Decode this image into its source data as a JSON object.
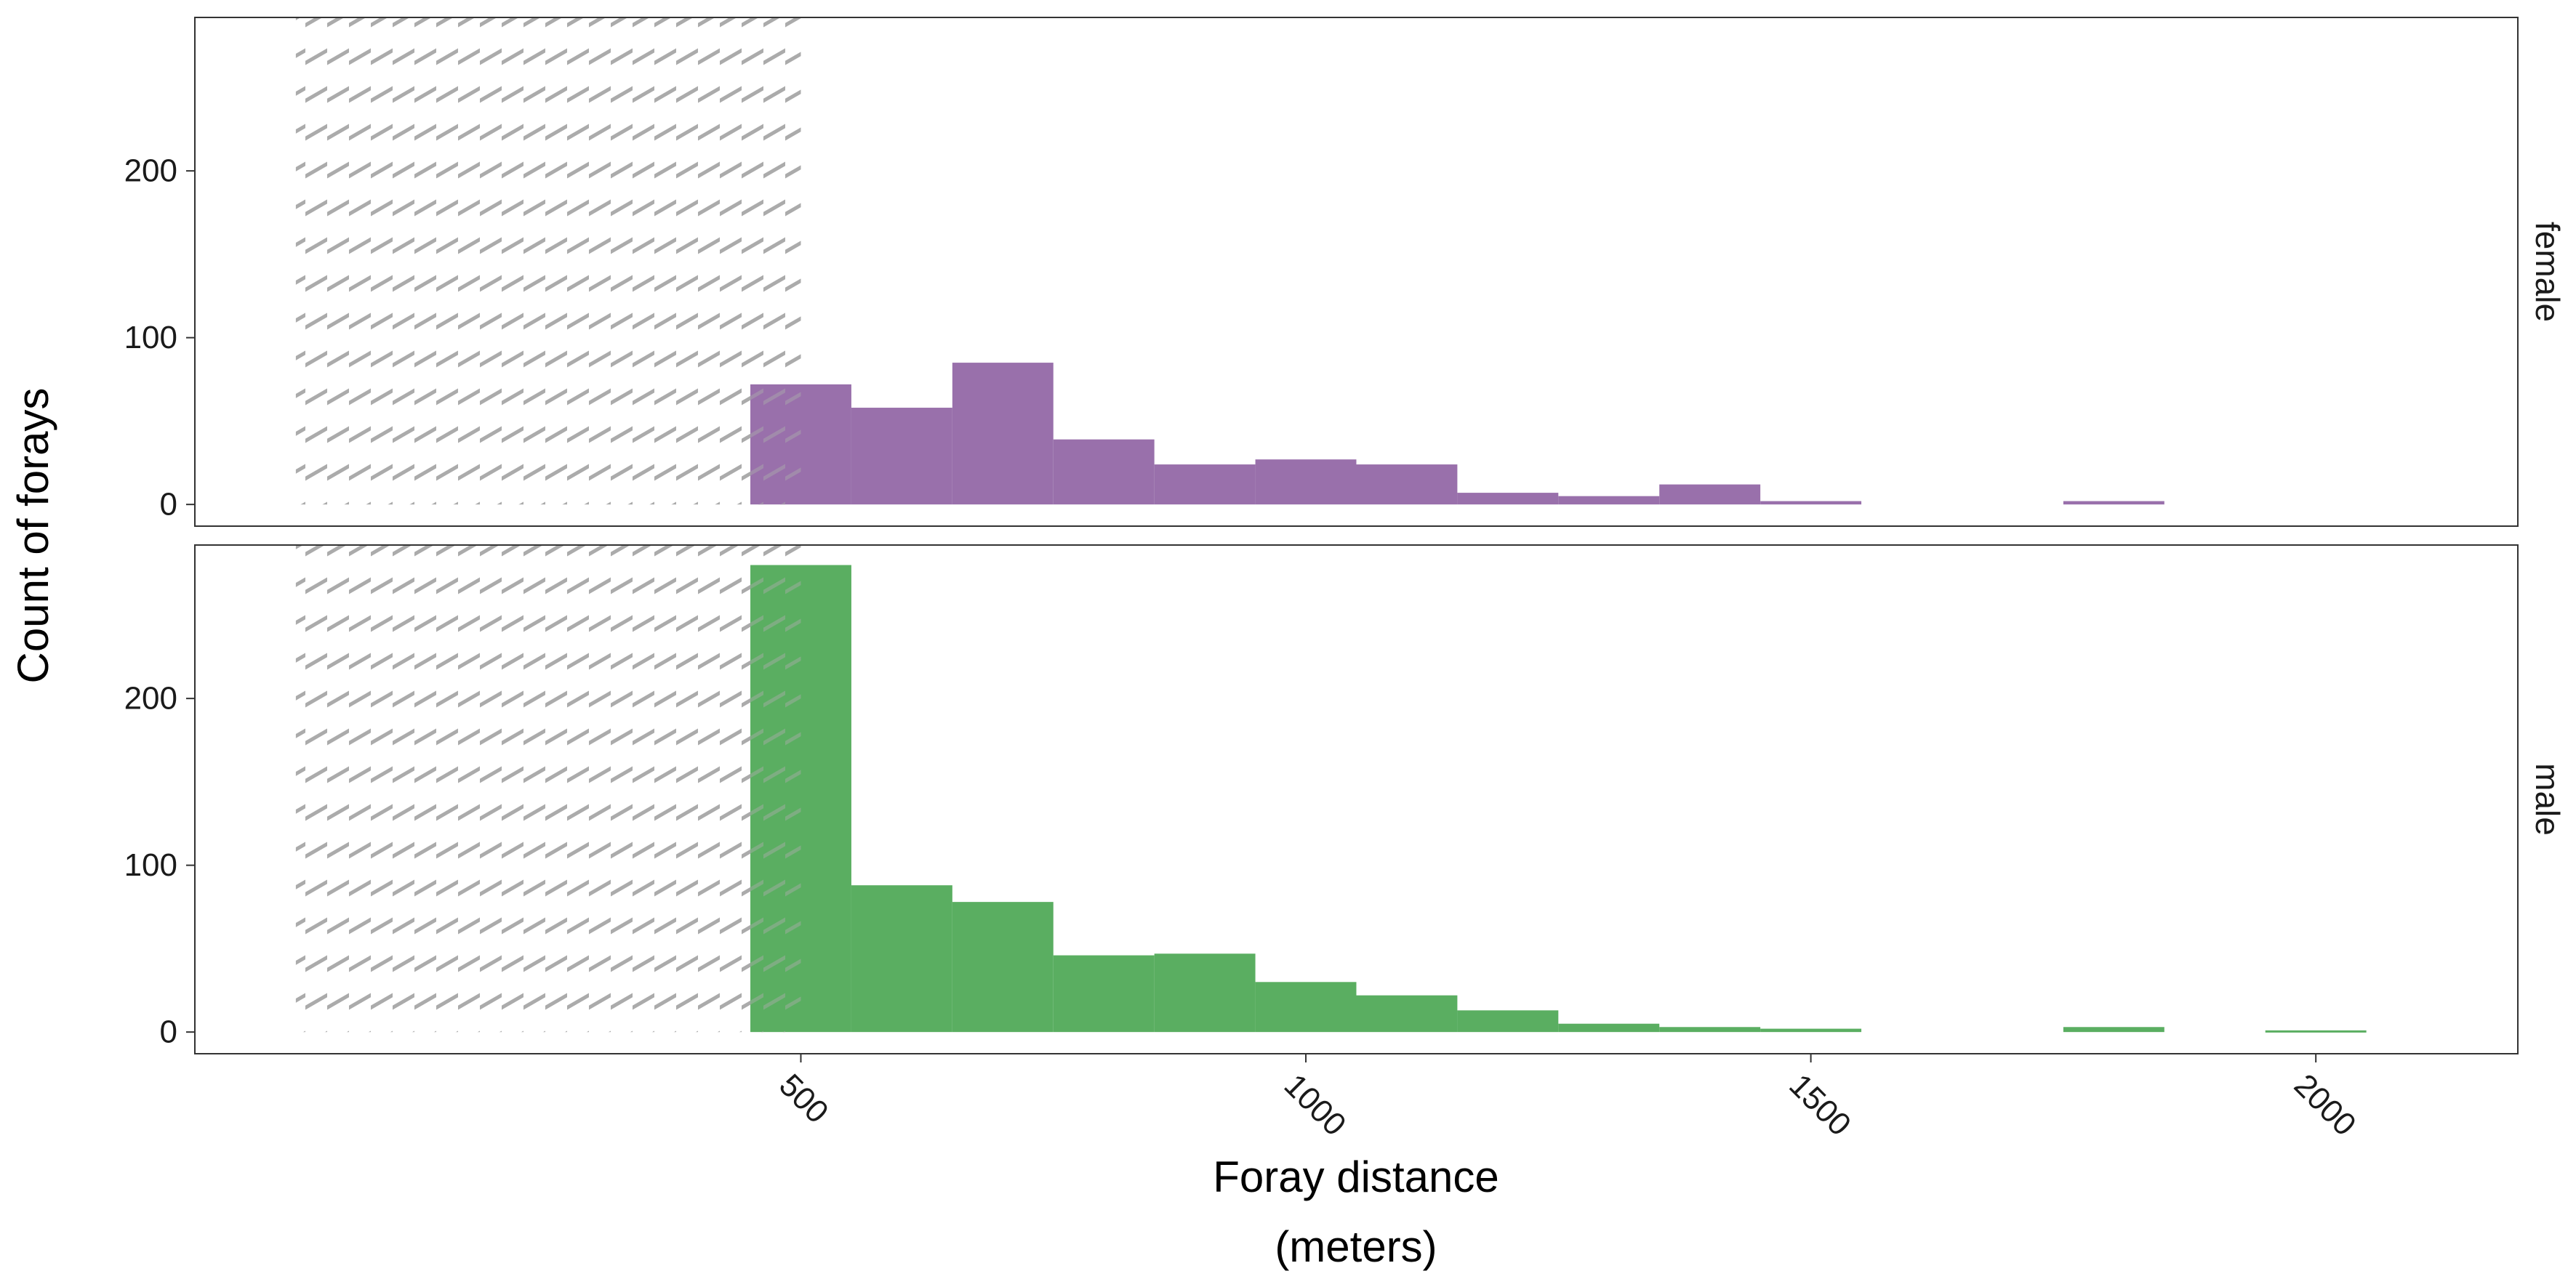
{
  "chart_data": {
    "type": "bar",
    "xlabel": "Foray distance",
    "xlabel_unit": "(meters)",
    "ylabel": "Count of forays",
    "x_ticks": [
      500,
      1000,
      1500,
      2000
    ],
    "y_ticks": [
      0,
      100,
      200
    ],
    "xlim": [
      -100,
      2200
    ],
    "ylim": [
      -13,
      292
    ],
    "bin_width": 100,
    "hatched_region": [
      0,
      500
    ],
    "grid": false,
    "facet_placement": "right",
    "bins": [
      500,
      600,
      700,
      800,
      900,
      1000,
      1100,
      1200,
      1300,
      1400,
      1500,
      1600,
      1700,
      1800,
      1900,
      2000
    ],
    "panels": [
      {
        "name": "female",
        "color": "#9970AB",
        "values": [
          72,
          58,
          85,
          39,
          24,
          27,
          24,
          7,
          5,
          12,
          2,
          0,
          0,
          2,
          0,
          0
        ]
      },
      {
        "name": "male",
        "color": "#5AAE61",
        "values": [
          280,
          88,
          78,
          46,
          47,
          30,
          22,
          13,
          5,
          3,
          2,
          0,
          0,
          3,
          0,
          1
        ]
      }
    ]
  }
}
